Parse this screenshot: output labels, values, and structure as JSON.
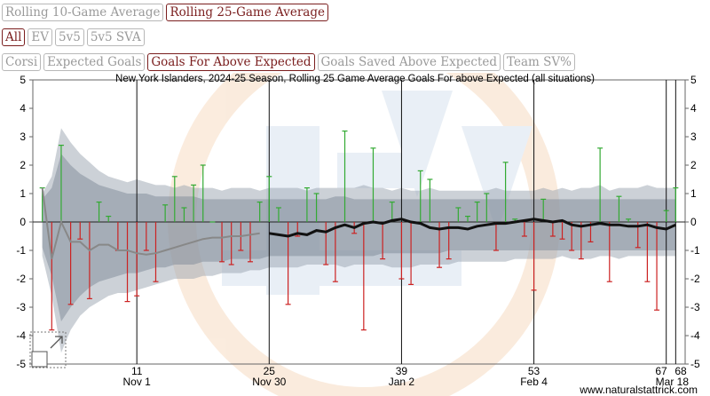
{
  "controls": {
    "averaging": [
      {
        "label": "Rolling 10-Game Average",
        "active": false
      },
      {
        "label": "Rolling 25-Game Average",
        "active": true
      }
    ],
    "situations": [
      {
        "label": "All",
        "active": true
      },
      {
        "label": "EV",
        "active": false
      },
      {
        "label": "5v5",
        "active": false
      },
      {
        "label": "5v5 SVA",
        "active": false
      }
    ],
    "metrics": [
      {
        "label": "Corsi",
        "active": false
      },
      {
        "label": "Expected Goals",
        "active": false
      },
      {
        "label": "Goals For Above Expected",
        "active": true
      },
      {
        "label": "Goals Saved Above Expected",
        "active": false
      },
      {
        "label": "Team SV%",
        "active": false
      }
    ]
  },
  "credit": "www.naturalstattrick.com",
  "colors": {
    "positive_bar": "#33aa33",
    "negative_bar": "#cc2222",
    "line_thin": "#888888",
    "line_thick": "#111111",
    "accent": "#7a1e1e"
  },
  "chart_data": {
    "type": "line",
    "title": "New York Islanders, 2024-25 Season, Rolling 25 Game Average Goals For above Expected (all situations)",
    "ylim": [
      -5,
      5
    ],
    "yticks": [
      -5,
      -4,
      -3,
      -2,
      -1,
      0,
      1,
      2,
      3,
      4,
      5
    ],
    "xlim": [
      0,
      69
    ],
    "xticks": [
      {
        "x": 11,
        "label": "11",
        "date": "Nov 1"
      },
      {
        "x": 25,
        "label": "25",
        "date": "Nov 30"
      },
      {
        "x": 39,
        "label": "39",
        "date": "Jan 2"
      },
      {
        "x": 53,
        "label": "53",
        "date": "Feb 4"
      },
      {
        "x": 67,
        "label": "67",
        "date": ""
      },
      {
        "x": 68,
        "label": "68",
        "date": "Mar 18"
      }
    ],
    "grid_x": [
      11,
      25,
      39,
      53,
      67,
      68
    ],
    "games": [
      1,
      2,
      3,
      4,
      5,
      6,
      7,
      8,
      9,
      10,
      11,
      12,
      13,
      14,
      15,
      16,
      17,
      18,
      19,
      20,
      21,
      22,
      23,
      24,
      25,
      26,
      27,
      28,
      29,
      30,
      31,
      32,
      33,
      34,
      35,
      36,
      37,
      38,
      39,
      40,
      41,
      42,
      43,
      44,
      45,
      46,
      47,
      48,
      49,
      50,
      51,
      52,
      53,
      54,
      55,
      56,
      57,
      58,
      59,
      60,
      61,
      62,
      63,
      64,
      65,
      66,
      67,
      68
    ],
    "game_values": [
      1.2,
      -3.8,
      2.7,
      -2.9,
      -0.6,
      -2.7,
      0.7,
      0.2,
      -1.0,
      -2.8,
      -2.6,
      -1.0,
      -2.1,
      0.6,
      1.6,
      0.5,
      1.3,
      2.0,
      0.0,
      -1.4,
      -1.5,
      -1.0,
      -1.4,
      0.7,
      1.6,
      0.5,
      -2.9,
      -0.5,
      1.2,
      1.0,
      -1.5,
      -2.1,
      3.2,
      -0.4,
      -3.8,
      2.6,
      -1.3,
      0.7,
      -2.0,
      -2.2,
      1.8,
      1.5,
      -1.6,
      -1.3,
      0.5,
      0.2,
      0.7,
      1.0,
      -1.0,
      2.1,
      0.1,
      -0.5,
      -2.4,
      0.8,
      -0.5,
      -0.6,
      -1.0,
      -1.3,
      -0.7,
      2.6,
      -2.1,
      0.9,
      0.1,
      -0.9,
      -2.1,
      -3.1,
      0.4,
      1.2
    ],
    "series": [
      {
        "style": "thin-gray",
        "x": [
          1,
          2,
          3,
          4,
          5,
          6,
          7,
          8,
          9,
          10,
          11,
          12,
          13,
          14,
          15,
          16,
          17,
          18,
          19,
          20,
          21,
          22,
          23,
          24
        ],
        "values": [
          1.2,
          -1.3,
          0.0,
          -0.7,
          -0.7,
          -1.0,
          -0.8,
          -0.8,
          -1.0,
          -1.0,
          -1.1,
          -1.15,
          -1.1,
          -1.0,
          -0.9,
          -0.8,
          -0.7,
          -0.6,
          -0.55,
          -0.55,
          -0.5,
          -0.5,
          -0.45,
          -0.4
        ]
      },
      {
        "style": "thick-black",
        "x": [
          25,
          26,
          27,
          28,
          29,
          30,
          31,
          32,
          33,
          34,
          35,
          36,
          37,
          38,
          39,
          40,
          41,
          42,
          43,
          44,
          45,
          46,
          47,
          48,
          49,
          50,
          51,
          52,
          53,
          54,
          55,
          56,
          57,
          58,
          59,
          60,
          61,
          62,
          63,
          64,
          65,
          66,
          67,
          68
        ],
        "values": [
          -0.4,
          -0.45,
          -0.5,
          -0.4,
          -0.45,
          -0.3,
          -0.35,
          -0.2,
          -0.1,
          -0.2,
          -0.05,
          0.0,
          -0.05,
          0.05,
          0.1,
          0.0,
          -0.05,
          -0.2,
          -0.25,
          -0.2,
          -0.2,
          -0.25,
          -0.15,
          -0.1,
          -0.05,
          -0.05,
          0.0,
          0.05,
          0.1,
          0.05,
          0.0,
          0.05,
          -0.1,
          -0.15,
          -0.1,
          -0.05,
          -0.1,
          -0.1,
          -0.15,
          -0.15,
          -0.1,
          -0.2,
          -0.25,
          -0.1
        ]
      }
    ],
    "band_outer": {
      "upper": [
        1.0,
        1.6,
        3.3,
        2.8,
        2.4,
        2.1,
        1.8,
        1.6,
        1.5,
        1.4,
        1.5,
        1.4,
        1.3,
        1.3,
        1.2,
        1.3,
        1.2,
        1.2,
        1.2,
        1.1,
        1.2,
        1.2,
        1.2,
        1.1,
        1.2,
        1.2,
        1.2,
        1.2,
        1.1,
        1.2,
        1.2,
        1.2,
        1.2,
        1.2,
        1.3,
        1.2,
        1.2,
        1.1,
        1.2,
        1.1,
        1.1,
        1.2,
        1.1,
        1.1,
        1.1,
        1.1,
        1.1,
        1.1,
        1.2,
        1.1,
        1.1,
        1.1,
        1.1,
        1.2,
        1.1,
        1.2,
        1.1,
        1.2,
        1.2,
        1.3,
        1.1,
        1.2,
        1.2,
        1.2,
        1.3,
        1.2,
        1.2,
        1.2
      ],
      "lower": [
        -1.2,
        -2.6,
        -4.6,
        -3.8,
        -3.3,
        -3.0,
        -2.8,
        -2.6,
        -2.5,
        -2.5,
        -2.4,
        -2.3,
        -2.2,
        -2.1,
        -2.0,
        -2.0,
        -2.0,
        -1.9,
        -1.9,
        -1.8,
        -1.8,
        -1.8,
        -1.7,
        -1.7,
        -1.6,
        -1.6,
        -1.6,
        -1.6,
        -1.5,
        -1.5,
        -1.5,
        -1.5,
        -1.6,
        -1.5,
        -1.5,
        -1.5,
        -1.5,
        -1.6,
        -1.6,
        -1.6,
        -1.5,
        -1.5,
        -1.5,
        -1.5,
        -1.4,
        -1.4,
        -1.4,
        -1.4,
        -1.4,
        -1.4,
        -1.3,
        -1.3,
        -1.3,
        -1.3,
        -1.3,
        -1.2,
        -1.3,
        -1.3,
        -1.3,
        -1.2,
        -1.2,
        -1.3,
        -1.2,
        -1.2,
        -1.2,
        -1.2,
        -1.2,
        -1.2
      ]
    },
    "band_inner": {
      "upper": [
        0.8,
        1.2,
        2.4,
        2.0,
        1.7,
        1.5,
        1.3,
        1.2,
        1.1,
        1.0,
        1.0,
        1.0,
        0.9,
        0.9,
        0.9,
        0.9,
        0.9,
        0.8,
        0.8,
        0.8,
        0.8,
        0.8,
        0.8,
        0.8,
        0.8,
        0.8,
        0.8,
        0.8,
        0.8,
        0.8,
        0.8,
        0.9,
        0.9,
        0.8,
        0.8,
        0.8,
        0.8,
        0.8,
        0.8,
        0.8,
        0.8,
        0.8,
        0.8,
        0.8,
        0.8,
        0.8,
        0.8,
        0.8,
        0.8,
        0.8,
        0.8,
        0.8,
        0.8,
        0.8,
        0.8,
        0.8,
        0.8,
        0.8,
        0.8,
        0.8,
        0.8,
        0.8,
        0.8,
        0.8,
        0.8,
        0.8,
        0.8,
        0.8
      ],
      "lower": [
        -0.9,
        -1.9,
        -3.5,
        -3.0,
        -2.6,
        -2.3,
        -2.1,
        -2.0,
        -1.9,
        -1.8,
        -1.8,
        -1.7,
        -1.6,
        -1.6,
        -1.5,
        -1.5,
        -1.5,
        -1.4,
        -1.4,
        -1.4,
        -1.3,
        -1.3,
        -1.3,
        -1.3,
        -1.2,
        -1.2,
        -1.2,
        -1.2,
        -1.2,
        -1.2,
        -1.2,
        -1.2,
        -1.2,
        -1.2,
        -1.2,
        -1.2,
        -1.1,
        -1.1,
        -1.1,
        -1.1,
        -1.1,
        -1.1,
        -1.1,
        -1.0,
        -1.0,
        -1.0,
        -1.0,
        -1.0,
        -1.0,
        -1.0,
        -1.0,
        -1.0,
        -1.0,
        -1.0,
        -1.0,
        -1.0,
        -1.0,
        -1.0,
        -1.0,
        -1.0,
        -1.0,
        -1.0,
        -1.0,
        -1.0,
        -1.0,
        -1.0,
        -1.0,
        -1.0
      ]
    }
  }
}
